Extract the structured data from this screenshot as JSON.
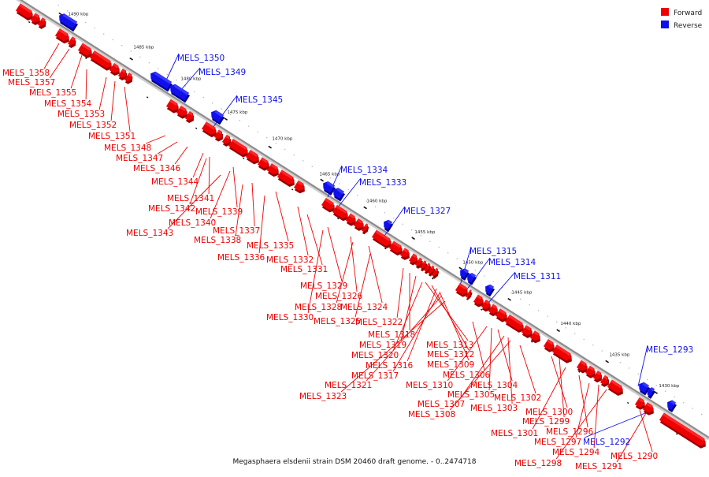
{
  "colors": {
    "forward": "#ee0000",
    "forward_top": "#ff4a4a",
    "forward_side": "#9a0000",
    "reverse": "#1010ee",
    "reverse_top": "#5a5aff",
    "reverse_side": "#000090",
    "backbone": "#8c8c8c",
    "tick_major": "#111111",
    "tick_minor": "#aaaaaa"
  },
  "legend": [
    {
      "label": "Forward",
      "strand": "forward"
    },
    {
      "label": "Reverse",
      "strand": "reverse"
    }
  ],
  "caption": "Megasphaera elsdenii strain DSM 20460 draft genome. - 0..2474718",
  "scale_labels": [
    "1490 kbp",
    "1485 kbp",
    "1480 kbp",
    "1475 kbp",
    "1470 kbp",
    "1465 kbp",
    "1460 kbp",
    "1455 kbp",
    "1450 kbp",
    "1445 kbp",
    "1440 kbp",
    "1435 kbp",
    "1430 kbp"
  ],
  "forward_genes": [
    "MELS_1358",
    "MELS_1357",
    "MELS_1355",
    "MELS_1354",
    "MELS_1353",
    "MELS_1352",
    "MELS_1351",
    "MELS_1348",
    "MELS_1347",
    "MELS_1346",
    "MELS_1344",
    "MELS_1341",
    "MELS_1342",
    "MELS_1339",
    "MELS_1340",
    "MELS_1343",
    "MELS_1337",
    "MELS_1338",
    "MELS_1335",
    "MELS_1336",
    "MELS_1332",
    "MELS_1331",
    "MELS_1329",
    "MELS_1326",
    "MELS_1328",
    "MELS_1324",
    "MELS_1330",
    "MELS_1325",
    "MELS_1322",
    "MELS_1318",
    "MELS_1319",
    "MELS_1313",
    "MELS_1320",
    "MELS_1312",
    "MELS_1316",
    "MELS_1309",
    "MELS_1317",
    "MELS_1306",
    "MELS_1321",
    "MELS_1310",
    "MELS_1304",
    "MELS_1305",
    "MELS_1323",
    "MELS_1302",
    "MELS_1307",
    "MELS_1303",
    "MELS_1308",
    "MELS_1300",
    "MELS_1299",
    "MELS_1296",
    "MELS_1301",
    "MELS_1297",
    "MELS_1294",
    "MELS_1290",
    "MELS_1298",
    "MELS_1291"
  ],
  "reverse_genes": [
    "MELS_1350",
    "MELS_1349",
    "MELS_1345",
    "MELS_1334",
    "MELS_1333",
    "MELS_1327",
    "MELS_1315",
    "MELS_1314",
    "MELS_1311",
    "MELS_1293",
    "MELS_1292"
  ]
}
